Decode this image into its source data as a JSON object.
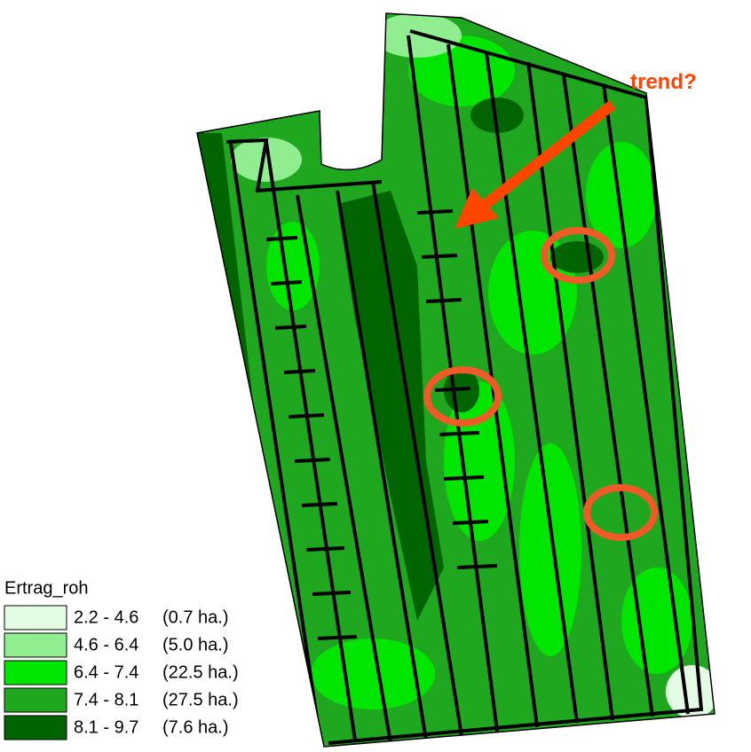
{
  "legend": {
    "title": "Ertrag_roh",
    "items": [
      {
        "range": "2.2 - 4.6",
        "area": "(0.7 ha.)",
        "color": "#e4fbe4"
      },
      {
        "range": "4.6 - 6.4",
        "area": "(5.0 ha.)",
        "color": "#90ee90"
      },
      {
        "range": "6.4 - 7.4",
        "area": "(22.5 ha.)",
        "color": "#00e600"
      },
      {
        "range": "7.4 - 8.1",
        "area": "(27.5 ha.)",
        "color": "#1fa81f"
      },
      {
        "range": "8.1 - 9.7",
        "area": "(7.6 ha.)",
        "color": "#006400"
      }
    ]
  },
  "annotation": "trend?"
}
